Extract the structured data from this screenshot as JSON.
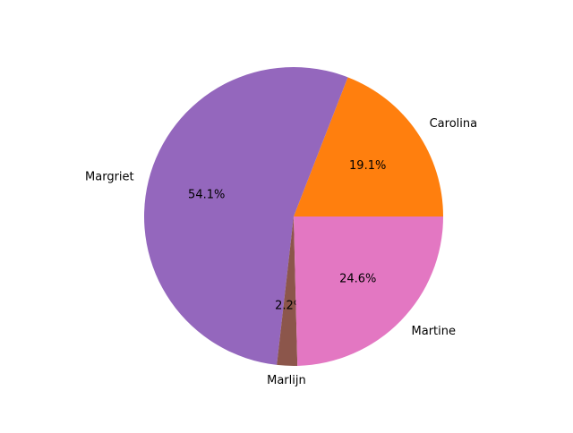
{
  "chart_data": {
    "type": "pie",
    "start_angle_deg": 0,
    "direction": "counterclockwise",
    "slices": [
      {
        "label": "Carolina",
        "value": 19.1,
        "pct_label": "19.1%",
        "color": "#ff7f0e"
      },
      {
        "label": "Margriet",
        "value": 54.1,
        "pct_label": "54.1%",
        "color": "#9467bd"
      },
      {
        "label": "Marlijn",
        "value": 2.2,
        "pct_label": "2.2%",
        "color": "#8c564b"
      },
      {
        "label": "Martine",
        "value": 24.6,
        "pct_label": "24.6%",
        "color": "#e377c2"
      }
    ]
  }
}
